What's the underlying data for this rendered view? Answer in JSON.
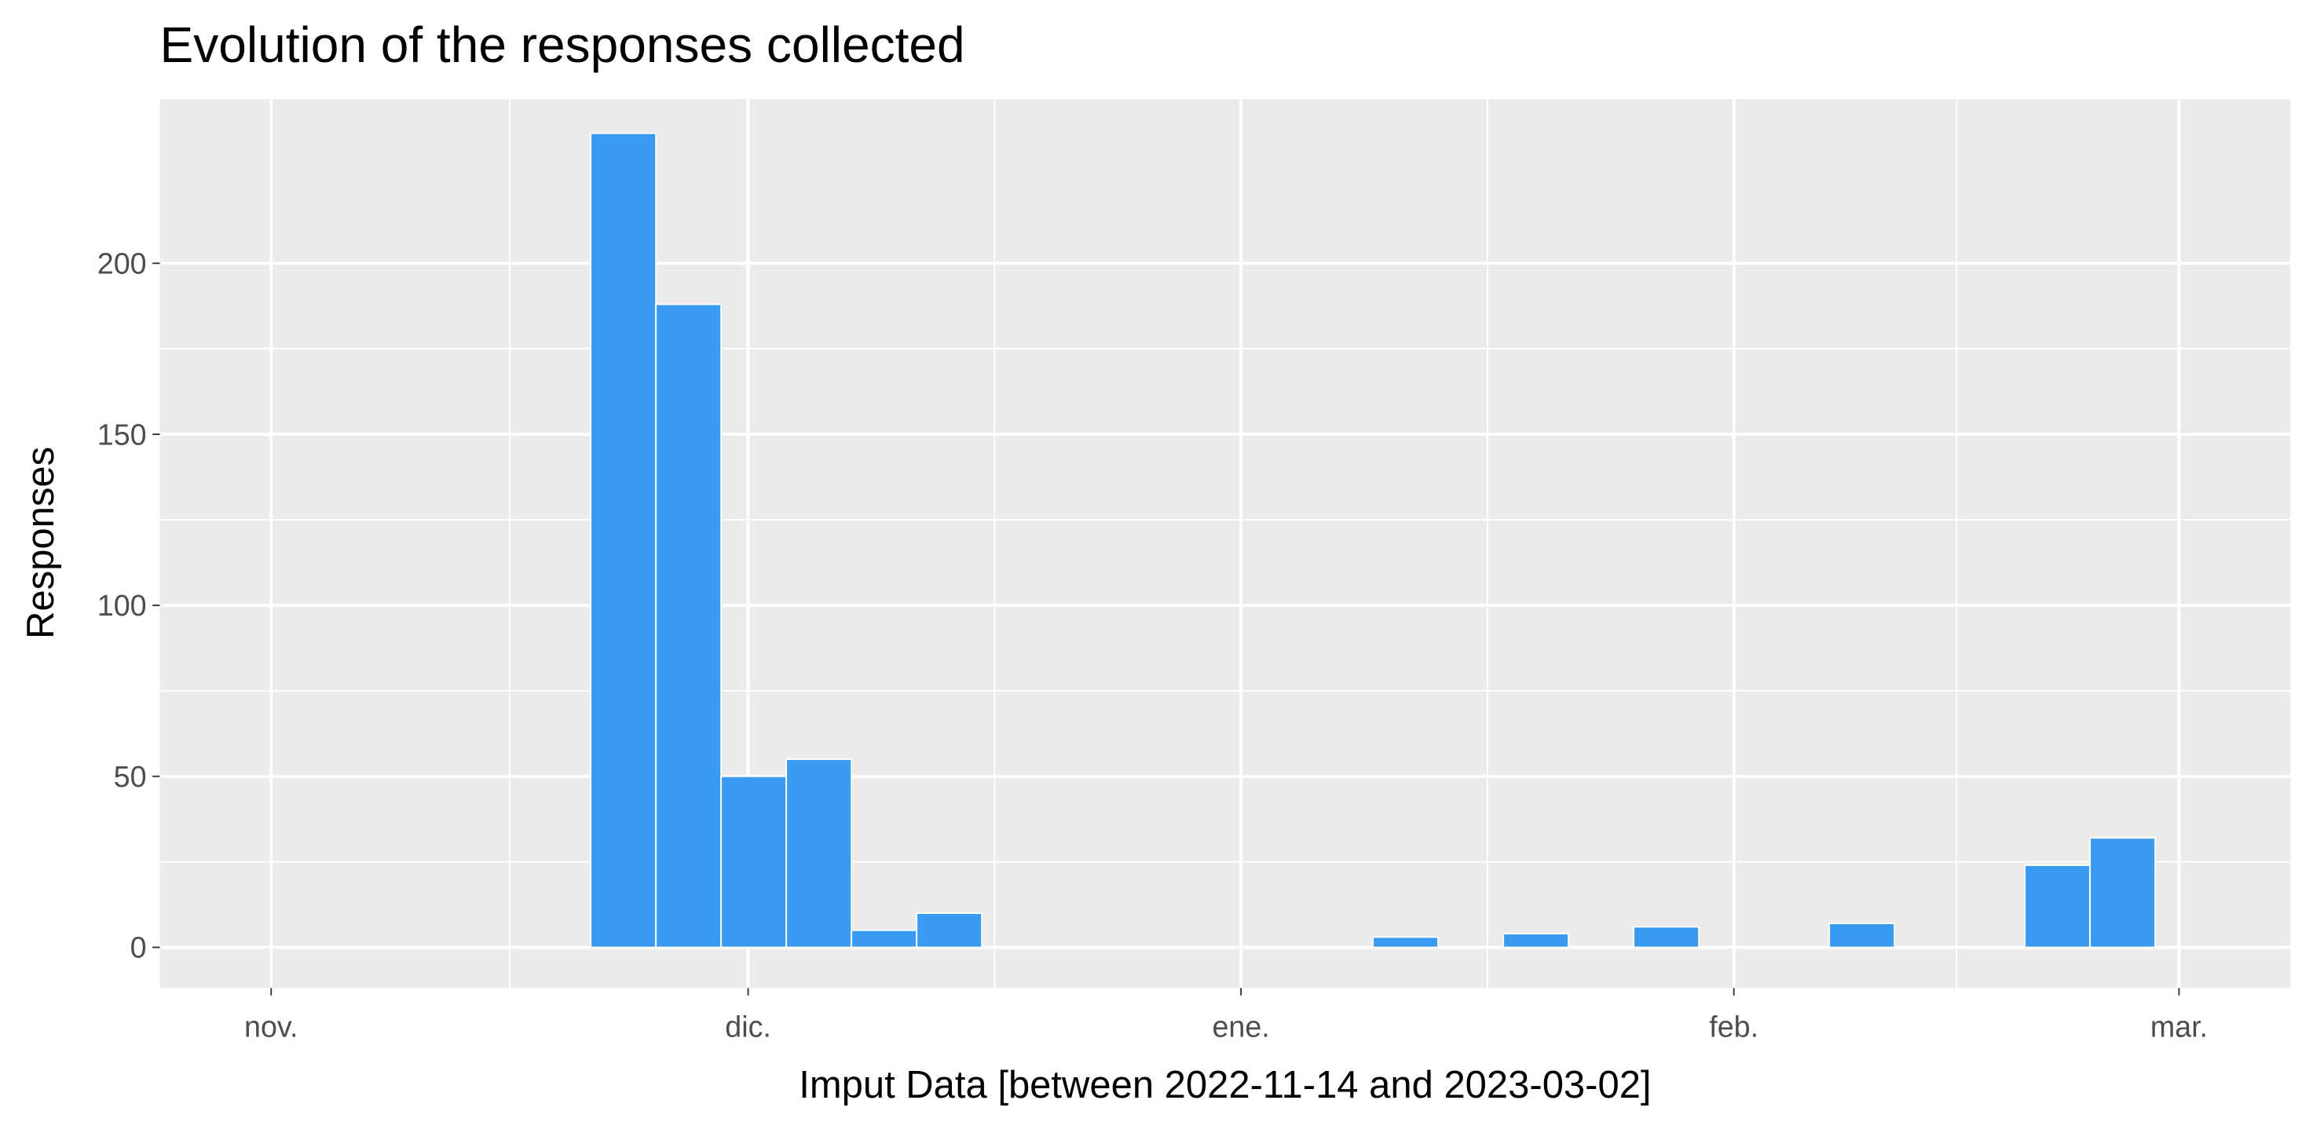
{
  "chart_data": {
    "type": "histogram",
    "title": "Evolution of the responses collected",
    "xlabel": "Imput Data [between 2022-11-14 and 2023-03-02]",
    "ylabel": "Responses",
    "bins": [
      -4.5,
      -0.4,
      3.7,
      7.8,
      11.9,
      16.0,
      20.1,
      24.2,
      28.3,
      32.4,
      36.5,
      40.6,
      44.7,
      48.8,
      52.9,
      57.0,
      61.1,
      65.2,
      69.3,
      73.4,
      77.5,
      81.6,
      85.7,
      89.8,
      93.9,
      98.0,
      102.1,
      106.2,
      110.3,
      114.4,
      118.5,
      122.6
    ],
    "values": [
      0,
      0,
      0,
      0,
      0,
      0,
      238,
      188,
      50,
      55,
      5,
      10,
      0,
      0,
      0,
      0,
      0,
      0,
      3,
      0,
      4,
      0,
      6,
      0,
      0,
      7,
      0,
      0,
      24,
      32,
      0
    ],
    "color": "#389bf1",
    "xlim": [
      -7,
      127
    ],
    "ylim": [
      -11.9,
      248
    ],
    "xticks": [
      {
        "value": 0,
        "label": "nov."
      },
      {
        "value": 30,
        "label": "dic."
      },
      {
        "value": 61,
        "label": "ene."
      },
      {
        "value": 92,
        "label": "feb."
      },
      {
        "value": 120,
        "label": "mar."
      }
    ],
    "yticks": [
      0,
      50,
      100,
      150,
      200
    ],
    "grid": true
  }
}
